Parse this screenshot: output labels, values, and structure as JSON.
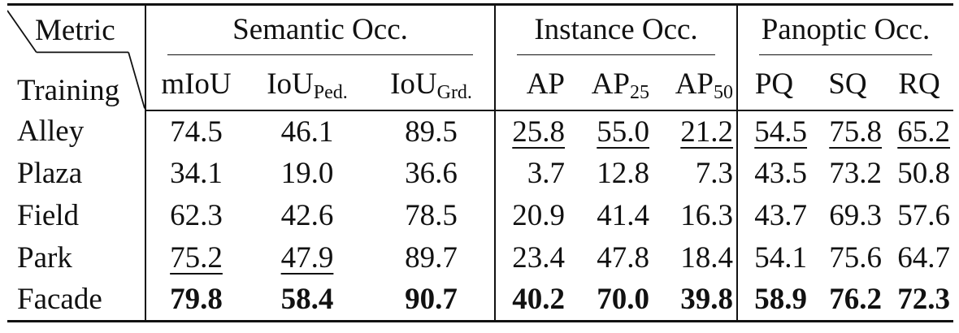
{
  "header": {
    "corner_top": "Metric",
    "corner_bottom": "Training",
    "groups": {
      "semantic": "Semantic Occ.",
      "instance": "Instance Occ.",
      "panoptic": "Panoptic Occ."
    },
    "columns": {
      "miou": "mIoU",
      "iou_ped_base": "IoU",
      "iou_ped_sub": "Ped.",
      "iou_grd_base": "IoU",
      "iou_grd_sub": "Grd.",
      "ap": "AP",
      "ap25_base": "AP",
      "ap25_sub": "25",
      "ap50_base": "AP",
      "ap50_sub": "50",
      "pq": "PQ",
      "sq": "SQ",
      "rq": "RQ"
    }
  },
  "rows": [
    {
      "label": "Alley",
      "v": [
        "74.5",
        "46.1",
        "89.5",
        "25.8",
        "55.0",
        "21.2",
        "54.5",
        "75.8",
        "65.2"
      ],
      "style": [
        "",
        "",
        "",
        "second",
        "second",
        "second",
        "second",
        "second",
        "second"
      ]
    },
    {
      "label": "Plaza",
      "v": [
        "34.1",
        "19.0",
        "36.6",
        "3.7",
        "12.8",
        "7.3",
        "43.5",
        "73.2",
        "50.8"
      ],
      "style": [
        "",
        "",
        "",
        "",
        "",
        "",
        "",
        "",
        ""
      ]
    },
    {
      "label": "Field",
      "v": [
        "62.3",
        "42.6",
        "78.5",
        "20.9",
        "41.4",
        "16.3",
        "43.7",
        "69.3",
        "57.6"
      ],
      "style": [
        "",
        "",
        "",
        "",
        "",
        "",
        "",
        "",
        ""
      ]
    },
    {
      "label": "Park",
      "v": [
        "75.2",
        "47.9",
        "89.7",
        "23.4",
        "47.8",
        "18.4",
        "54.1",
        "75.6",
        "64.7"
      ],
      "style": [
        "second",
        "second",
        "",
        "",
        "",
        "",
        "",
        "",
        ""
      ]
    },
    {
      "label": "Facade",
      "v": [
        "79.8",
        "58.4",
        "90.7",
        "40.2",
        "70.0",
        "39.8",
        "58.9",
        "76.2",
        "72.3"
      ],
      "style": [
        "best",
        "best",
        "best",
        "best",
        "best",
        "best",
        "best",
        "best",
        "best"
      ]
    }
  ]
}
